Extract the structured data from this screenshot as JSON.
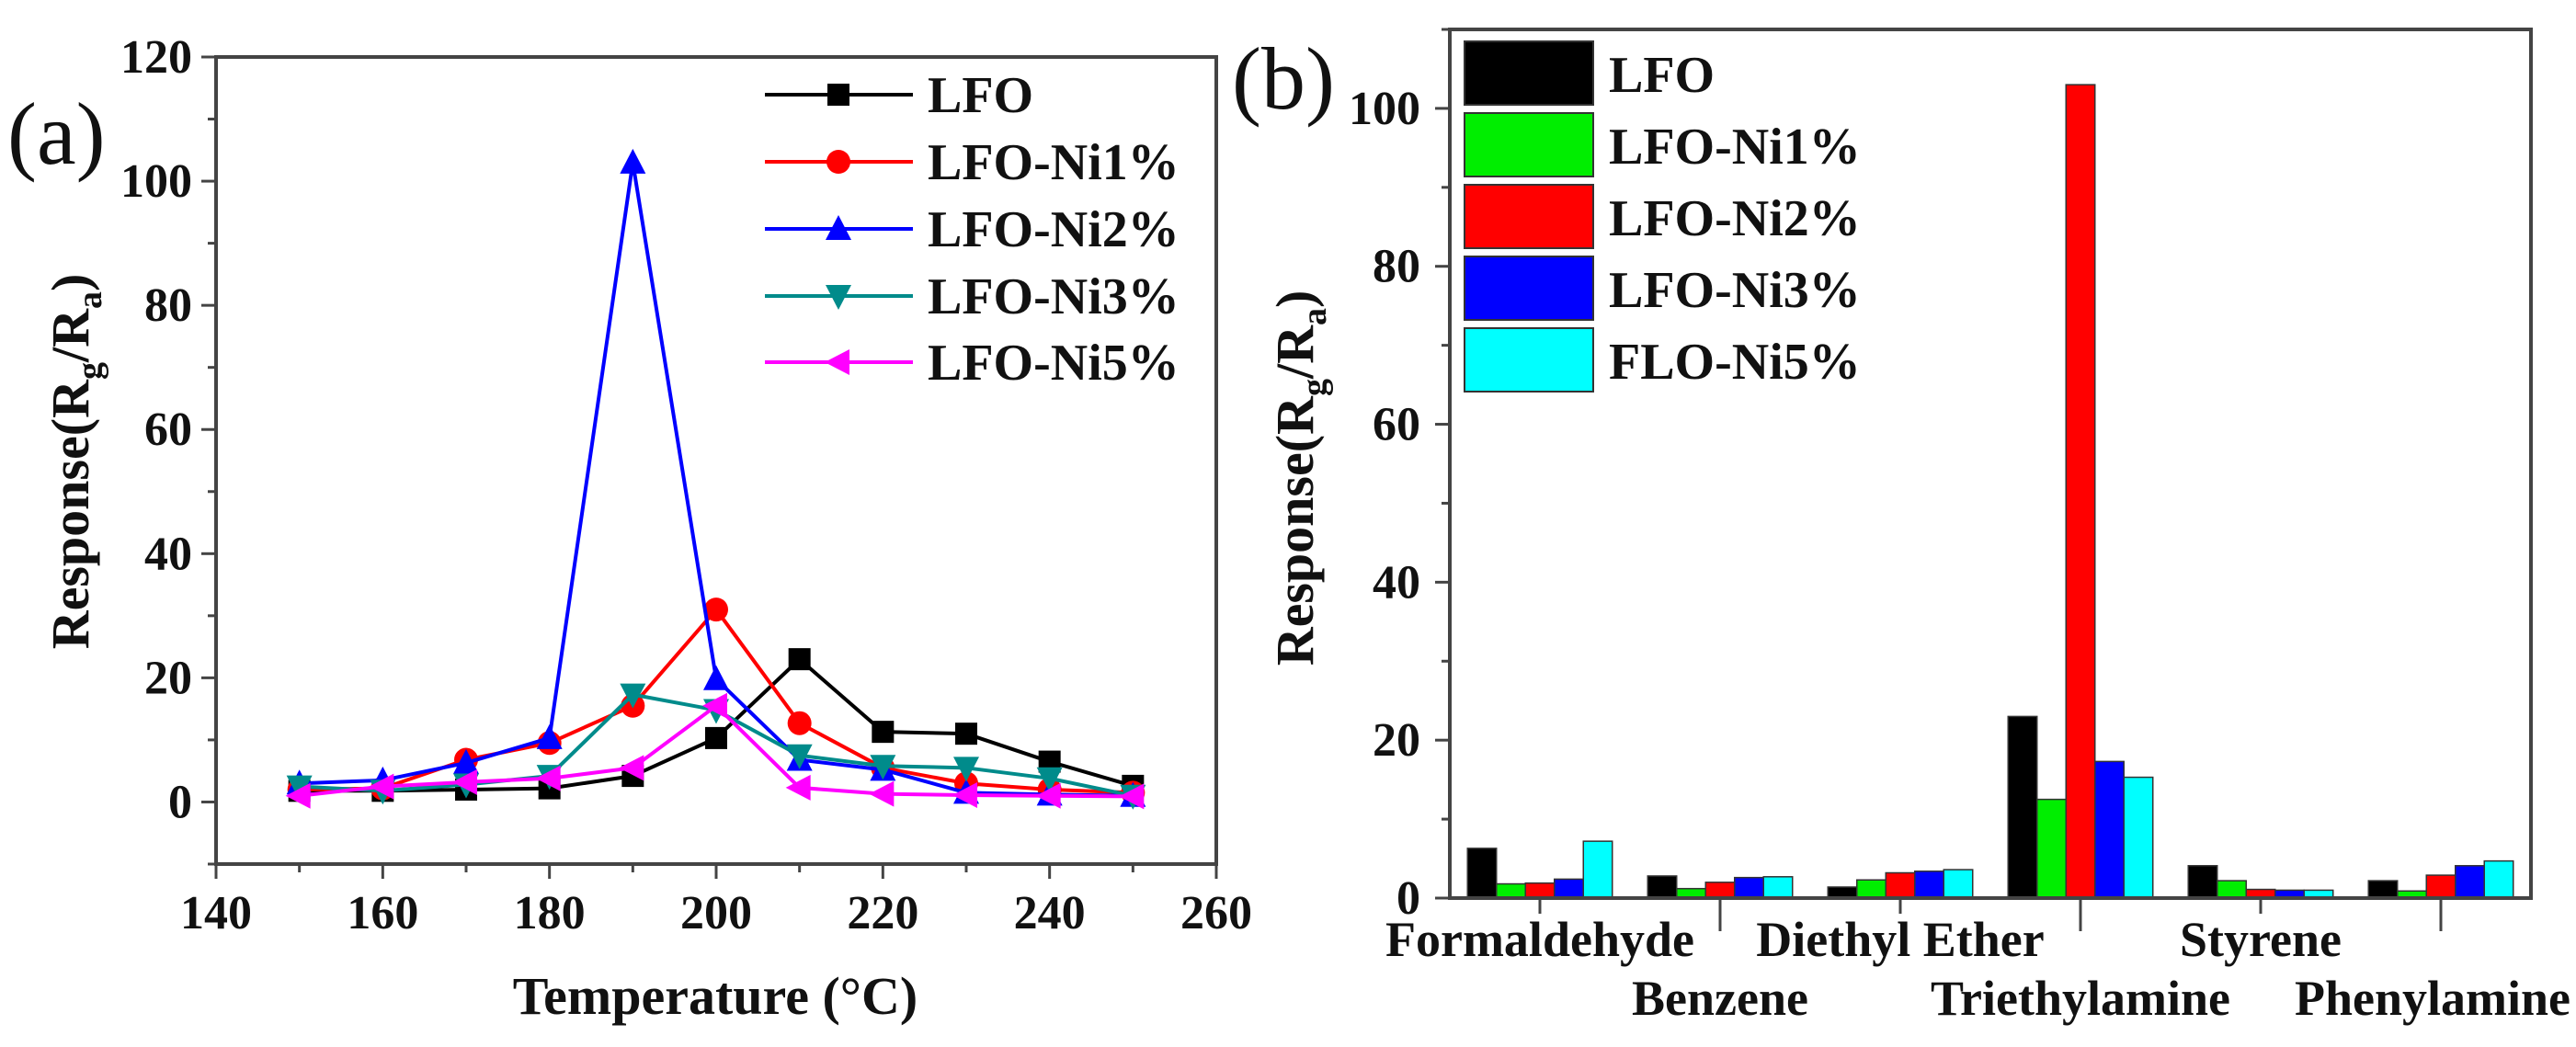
{
  "chart_data": [
    {
      "type": "line",
      "panel_label": "(a)",
      "title": "",
      "xlabel": "Temperature (°C)",
      "ylabel": "Response(Rg/Ra)",
      "ylabel_parts": {
        "pre": "Response(R",
        "sub1": "g",
        "mid": "/R",
        "sub2": "a",
        "post": ")"
      },
      "xlim": [
        140,
        260
      ],
      "ylim": [
        -10,
        120
      ],
      "xticks": [
        140,
        160,
        180,
        200,
        220,
        240,
        260
      ],
      "yticks": [
        0,
        20,
        40,
        60,
        80,
        100,
        120
      ],
      "grid": false,
      "legend_position": "top-right",
      "x": [
        150,
        160,
        170,
        180,
        190,
        200,
        210,
        220,
        230,
        240,
        250
      ],
      "series": [
        {
          "name": "LFO",
          "color": "#000000",
          "marker": "square",
          "values": [
            1.8,
            1.8,
            2.0,
            2.2,
            4.2,
            10.3,
            23.0,
            11.3,
            11.0,
            6.5,
            2.6
          ]
        },
        {
          "name": "LFO-Ni1%",
          "color": "#ff0000",
          "marker": "circle",
          "values": [
            2.0,
            2.2,
            6.8,
            9.5,
            15.5,
            31.0,
            12.7,
            5.5,
            3.0,
            2.0,
            1.5
          ]
        },
        {
          "name": "LFO-Ni2%",
          "color": "#0000ff",
          "marker": "triangle-up",
          "values": [
            3.0,
            3.5,
            6.3,
            10.3,
            103.0,
            19.8,
            6.8,
            5.2,
            1.5,
            1.2,
            1.0
          ]
        },
        {
          "name": "LFO-Ni3%",
          "color": "#008b8b",
          "marker": "triangle-down",
          "values": [
            2.5,
            1.8,
            2.8,
            4.2,
            17.3,
            14.8,
            7.5,
            5.8,
            5.5,
            3.8,
            1.0
          ]
        },
        {
          "name": "LFO-Ni5%",
          "color": "#ff00ff",
          "marker": "triangle-left",
          "values": [
            1.0,
            2.5,
            3.2,
            3.8,
            5.5,
            15.5,
            2.3,
            1.3,
            1.1,
            1.0,
            0.9
          ]
        }
      ]
    },
    {
      "type": "bar",
      "panel_label": "(b)",
      "title": "",
      "xlabel": "",
      "ylabel": "Response(Rg/Ra)",
      "ylabel_parts": {
        "pre": "Response(R",
        "sub1": "g",
        "mid": "/R",
        "sub2": "a",
        "post": ")"
      },
      "ylim": [
        0,
        110
      ],
      "yticks": [
        0,
        20,
        40,
        60,
        80,
        100
      ],
      "grid": false,
      "legend_position": "top-left",
      "categories": [
        "Formaldehyde",
        "Benzene",
        "Diethyl Ether",
        "Triethylamine",
        "Styrene",
        "Phenylamine"
      ],
      "series": [
        {
          "name": "LFO",
          "color": "#000000",
          "values": [
            6.3,
            2.8,
            1.4,
            23.0,
            4.1,
            2.2
          ]
        },
        {
          "name": "LFO-Ni1%",
          "color": "#00ee00",
          "values": [
            1.8,
            1.2,
            2.3,
            12.5,
            2.2,
            0.9
          ]
        },
        {
          "name": "LFO-Ni2%",
          "color": "#ff0000",
          "values": [
            1.9,
            2.0,
            3.2,
            103.0,
            1.1,
            2.9
          ]
        },
        {
          "name": "LFO-Ni3%",
          "color": "#0000ff",
          "values": [
            2.4,
            2.6,
            3.4,
            17.3,
            1.0,
            4.1
          ]
        },
        {
          "name": "FLO-Ni5%",
          "color": "#00ffff",
          "values": [
            7.2,
            2.7,
            3.6,
            15.3,
            1.0,
            4.7
          ]
        }
      ]
    }
  ]
}
